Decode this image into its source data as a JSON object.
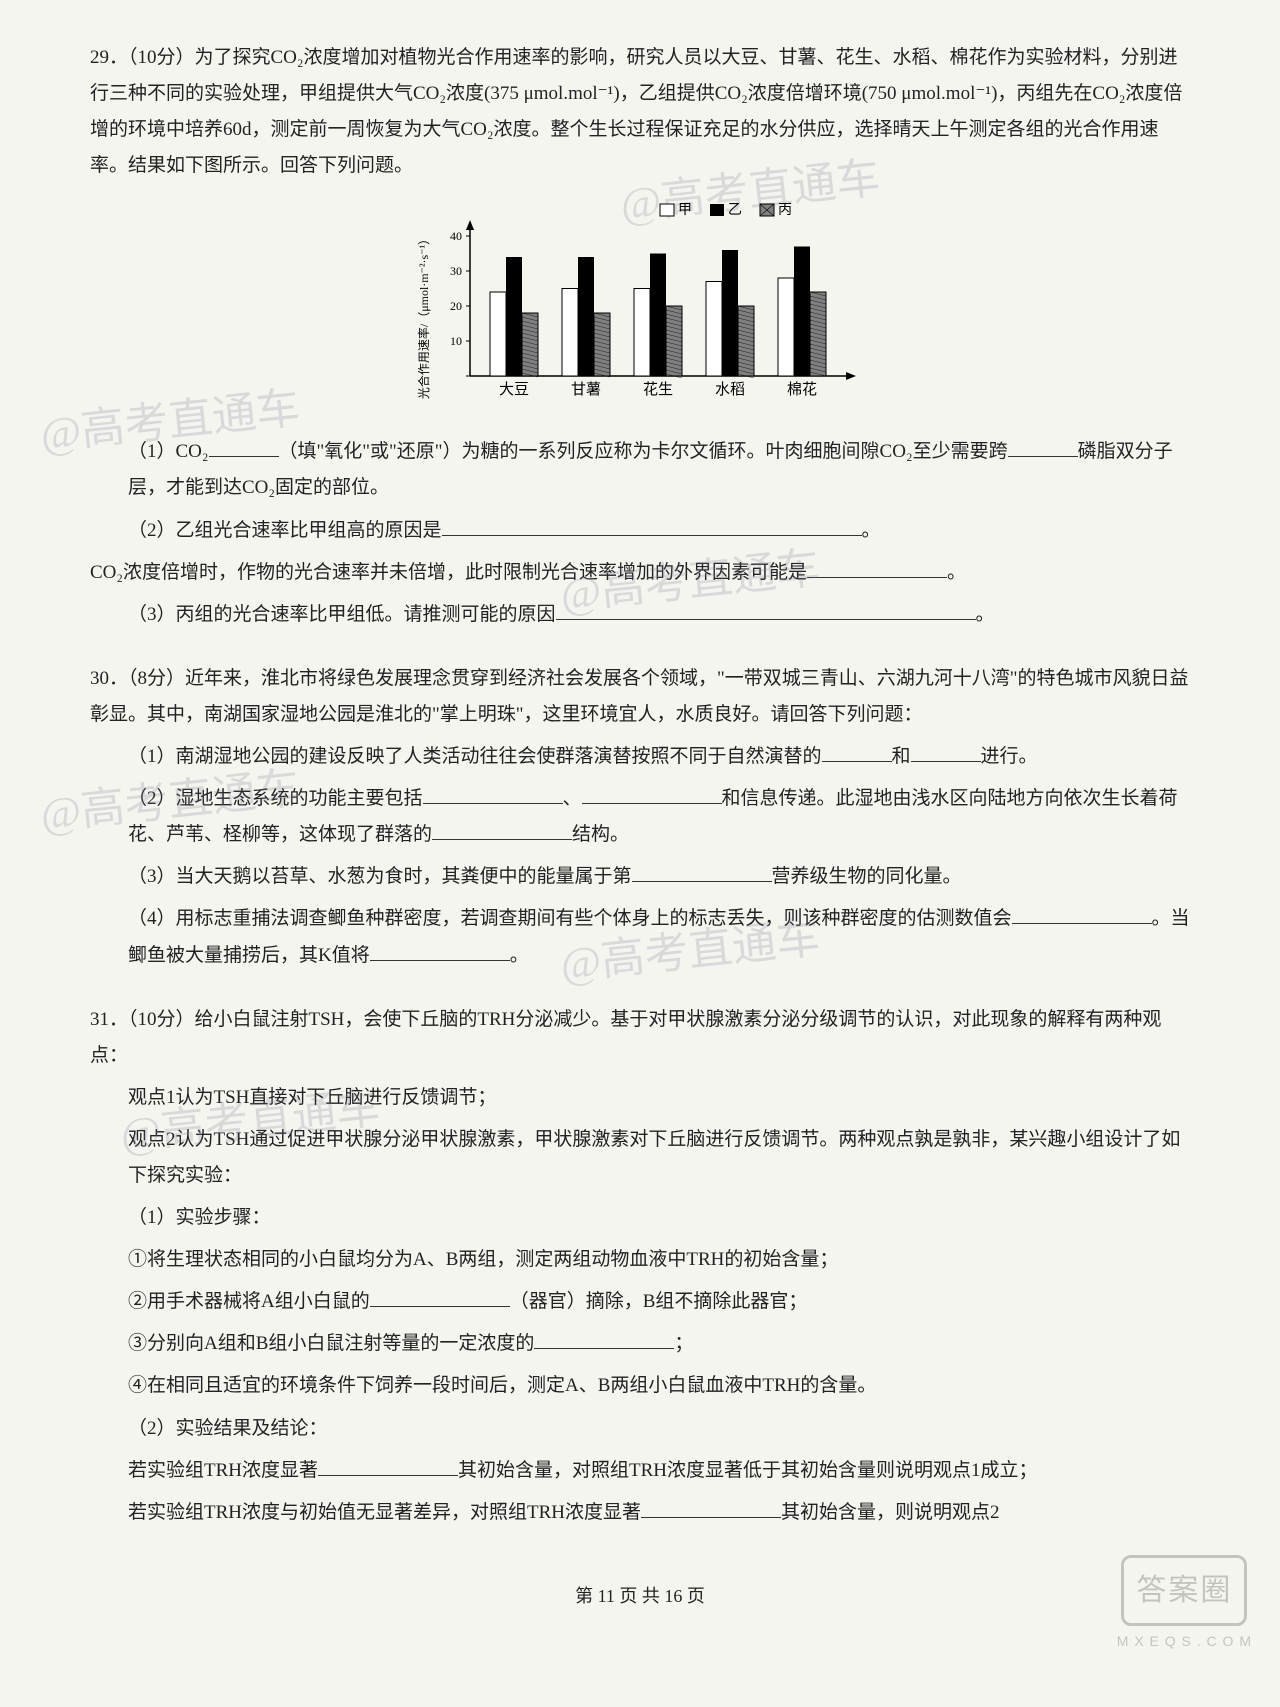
{
  "watermarks": {
    "w1": "@高考直通车",
    "w2": "@高考直通车",
    "w3": "@高考直通车",
    "w4": "@高考直通车",
    "w5": "@高考直通车",
    "w6": "@高考直通车"
  },
  "q29": {
    "intro_a": "29．（10分）为了探究CO₂浓度增加对植物光合作用速率的影响，研究人员以大豆、甘薯、花生、水稻、棉花作为实验材料，分别进行三种不同的实验处理，甲组提供大气CO₂浓度(375 μmol.mol⁻¹)，乙组提供CO₂浓度倍增环境(750 μmol.mol⁻¹)，丙组先在CO₂浓度倍增的环境中培养60d，测定前一周恢复为大气CO₂浓度。整个生长过程保证充足的水分供应，选择晴天上午测定各组的光合作用速率。结果如下图所示。回答下列问题。",
    "sub1_a": "（1）CO₂",
    "sub1_b": "（填\"氧化\"或\"还原\"）为糖的一系列反应称为卡尔文循环。叶肉细胞间隙CO₂至少需要跨",
    "sub1_c": "磷脂双分子层，才能到达CO₂固定的部位。",
    "sub2_a": "（2）乙组光合速率比甲组高的原因是",
    "sub2_b": "CO₂浓度倍增时，作物的光合速率并未倍增，此时限制光合速率增加的外界因素可能是",
    "sub2_end": "。",
    "sub3_a": "（3）丙组的光合速率比甲组低。请推测可能的原因",
    "sub3_end": "。",
    "chart": {
      "type": "bar",
      "ylabel": "光合作用速率/（μmol·m⁻²·s⁻¹）",
      "ylim": [
        0,
        40
      ],
      "yticks": [
        0,
        10,
        20,
        30,
        40
      ],
      "categories": [
        "大豆",
        "甘薯",
        "花生",
        "水稻",
        "棉花"
      ],
      "legend": {
        "jia": "甲",
        "yi": "乙",
        "bing": "丙"
      },
      "series": {
        "jia": {
          "values": [
            24,
            25,
            25,
            27,
            28
          ],
          "fill": "#ffffff",
          "stroke": "#000000",
          "pattern": "none"
        },
        "yi": {
          "values": [
            34,
            34,
            35,
            36,
            37
          ],
          "fill": "#000000",
          "stroke": "#000000",
          "pattern": "solid"
        },
        "bing": {
          "values": [
            18,
            18,
            20,
            20,
            24
          ],
          "fill": "#808080",
          "stroke": "#000000",
          "pattern": "hatch"
        }
      },
      "bar_width_ratio": 0.22,
      "group_gap_ratio": 0.28,
      "background": "#ffffff",
      "axis_color": "#000000",
      "label_fontsize": 13
    }
  },
  "q30": {
    "intro": "30．（8分）近年来，淮北市将绿色发展理念贯穿到经济社会发展各个领域，\"一带双城三青山、六湖九河十八湾\"的特色城市风貌日益彰显。其中，南湖国家湿地公园是淮北的\"掌上明珠\"，这里环境宜人，水质良好。请回答下列问题：",
    "sub1_a": "（1）南湖湿地公园的建设反映了人类活动往往会使群落演替按照不同于自然演替的",
    "sub1_b": "和",
    "sub1_c": "进行。",
    "sub2_a": "（2）湿地生态系统的功能主要包括",
    "sub2_b": "、",
    "sub2_c": "和信息传递。此湿地由浅水区向陆地方向依次生长着荷花、芦苇、柽柳等，这体现了群落的",
    "sub2_d": "结构。",
    "sub3_a": "（3）当大天鹅以苔草、水葱为食时，其粪便中的能量属于第",
    "sub3_b": "营养级生物的同化量。",
    "sub4_a": "（4）用标志重捕法调查鲫鱼种群密度，若调查期间有些个体身上的标志丢失，则该种群密度的估测数值会",
    "sub4_b": "。当鲫鱼被大量捕捞后，其K值将",
    "sub4_c": "。"
  },
  "q31": {
    "intro": "31．（10分）给小白鼠注射TSH，会使下丘脑的TRH分泌减少。基于对甲状腺激素分泌分级调节的认识，对此现象的解释有两种观点：",
    "view1": "观点1认为TSH直接对下丘脑进行反馈调节；",
    "view2": "观点2认为TSH通过促进甲状腺分泌甲状腺激素，甲状腺激素对下丘脑进行反馈调节。两种观点孰是孰非，某兴趣小组设计了如下探究实验：",
    "steps_title": "（1）实验步骤：",
    "step1": "①将生理状态相同的小白鼠均分为A、B两组，测定两组动物血液中TRH的初始含量；",
    "step2_a": "②用手术器械将A组小白鼠的",
    "step2_b": "（器官）摘除，B组不摘除此器官；",
    "step3_a": "③分别向A组和B组小白鼠注射等量的一定浓度的",
    "step3_b": "；",
    "step4": "④在相同且适宜的环境条件下饲养一段时间后，测定A、B两组小白鼠血液中TRH的含量。",
    "result_title": "（2）实验结果及结论：",
    "result1_a": "若实验组TRH浓度显著",
    "result1_b": "其初始含量，对照组TRH浓度显著低于其初始含量则说明观点1成立；",
    "result2_a": "若实验组TRH浓度与初始值无显著差异，对照组TRH浓度显著",
    "result2_b": "其初始含量，则说明观点2"
  },
  "footer": "第 11 页 共 16 页",
  "stamp": {
    "text": "答案圈",
    "url": "M X E Q S . C O M"
  }
}
